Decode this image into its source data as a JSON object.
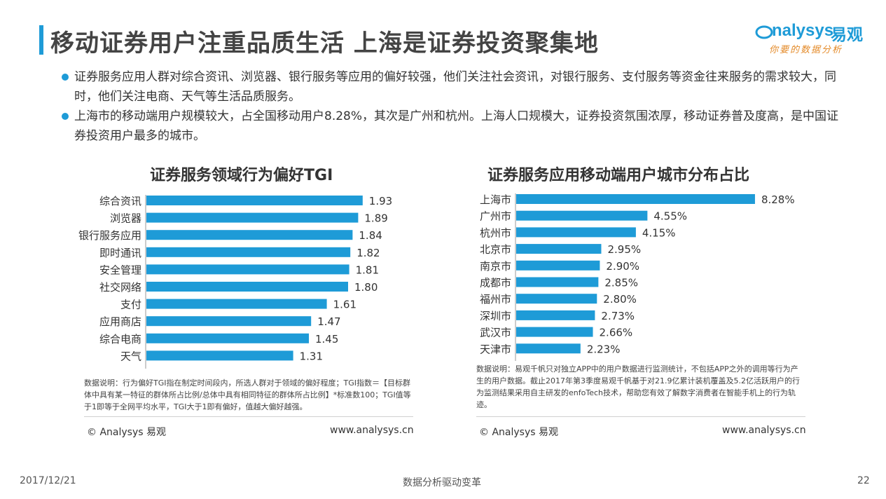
{
  "header": {
    "title": "移动证券用户注重品质生活  上海是证券投资聚集地",
    "logo_main": "nalysys",
    "logo_cn": "易观",
    "logo_sub": "你要的数据分析"
  },
  "bullets": [
    "证券服务应用人群对综合资讯、浏览器、银行服务等应用的偏好较强，他们关注社会资讯，对银行服务、支付服务等资金往来服务的需求较大，同时，他们关注电商、天气等生活品质服务。",
    "上海市的移动端用户规模较大，占全国移动用户8.28%，其次是广州和杭州。上海人口规模大，证券投资氛围浓厚，移动证券普及度高，是中国证券投资用户最多的城市。"
  ],
  "colors": {
    "accent": "#1e9bd7",
    "bar": "#1e9bd7",
    "logo_sub": "#e48a28"
  },
  "chart_data": [
    {
      "type": "bar",
      "orientation": "horizontal",
      "title": "证券服务领域行为偏好TGI",
      "categories": [
        "综合资讯",
        "浏览器",
        "银行服务应用",
        "即时通讯",
        "安全管理",
        "社交网络",
        "支付",
        "应用商店",
        "综合电商",
        "天气"
      ],
      "values": [
        1.93,
        1.89,
        1.84,
        1.82,
        1.81,
        1.8,
        1.61,
        1.47,
        1.45,
        1.31
      ],
      "value_labels": [
        "1.93",
        "1.89",
        "1.84",
        "1.82",
        "1.81",
        "1.80",
        "1.61",
        "1.47",
        "1.45",
        "1.31"
      ],
      "xlim": [
        0,
        2.0
      ],
      "note": "数据说明：行为偏好TGI指在制定时间段内，所选人群对于领域的偏好程度；TGI指数＝【目标群体中具有某一特征的群体所占比例/总体中具有相同特征的群体所占比例】*标准数100；TGI值等于1即等于全网平均水平，TGI大于1即有偏好，值越大偏好越强。",
      "copyright": "© Analysys 易观",
      "site": "www.analysys.cn"
    },
    {
      "type": "bar",
      "orientation": "horizontal",
      "title": "证券服务应用移动端用户城市分布占比",
      "categories": [
        "上海市",
        "广州市",
        "杭州市",
        "北京市",
        "南京市",
        "成都市",
        "福州市",
        "深圳市",
        "武汉市",
        "天津市"
      ],
      "values": [
        8.28,
        4.55,
        4.15,
        2.95,
        2.9,
        2.85,
        2.8,
        2.73,
        2.66,
        2.23
      ],
      "value_labels": [
        "8.28%",
        "4.55%",
        "4.15%",
        "2.95%",
        "2.90%",
        "2.85%",
        "2.80%",
        "2.73%",
        "2.66%",
        "2.23%"
      ],
      "xlim": [
        0,
        8.5
      ],
      "note": "数据说明：易观千帆只对独立APP中的用户数据进行监测统计，不包括APP之外的调用等行为产生的用户数据。截止2017年第3季度易观千帆基于对21.9亿累计装机覆盖及5.2亿活跃用户的行为监测结果采用自主研发的enfoTech技术，帮助您有效了解数字消费者在智能手机上的行为轨迹。",
      "copyright": "© Analysys 易观",
      "site": "www.analysys.cn"
    }
  ],
  "footer": {
    "date": "2017/12/21",
    "slogan": "数据分析驱动变革",
    "page": "22"
  }
}
